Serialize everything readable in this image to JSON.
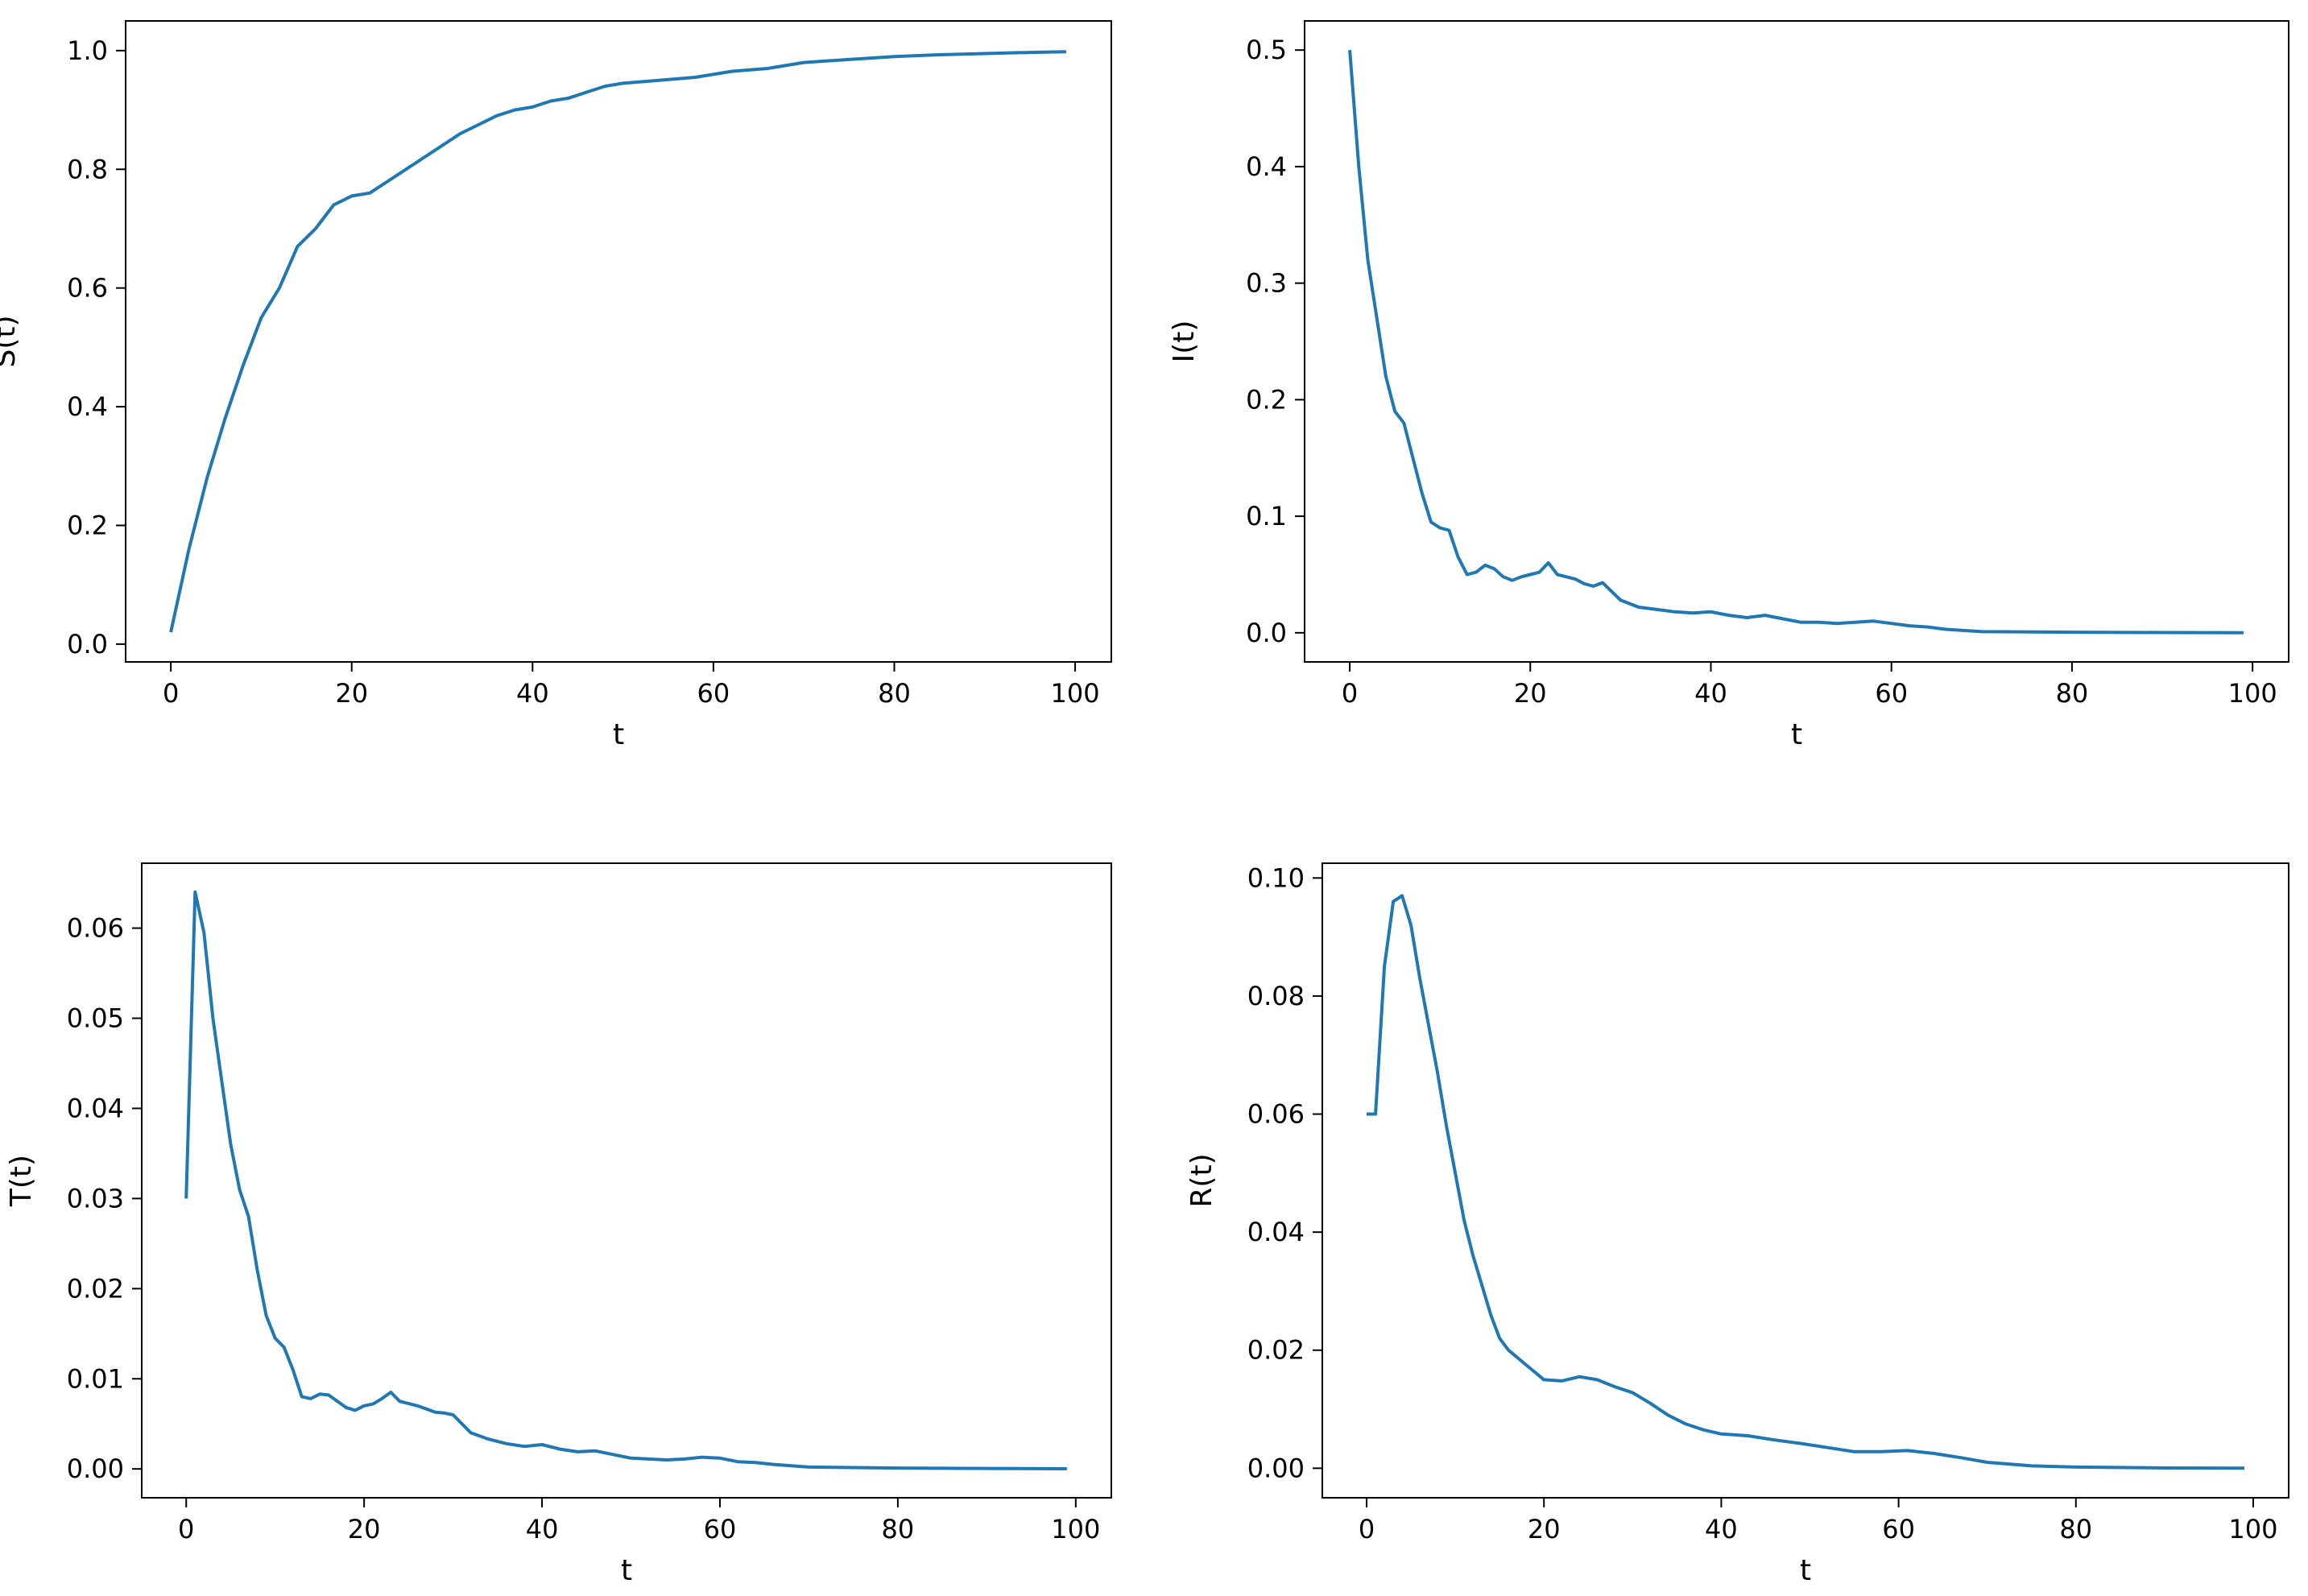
{
  "chart_data": [
    {
      "type": "line",
      "xlabel": "t",
      "ylabel": "S(t)",
      "xlim": [
        -5,
        104
      ],
      "ylim": [
        -0.03,
        1.05
      ],
      "xticks": [
        "0",
        "20",
        "40",
        "60",
        "80",
        "100"
      ],
      "yticks": [
        "0.0",
        "0.2",
        "0.4",
        "0.6",
        "0.8",
        "1.0"
      ],
      "x": [
        0,
        2,
        4,
        6,
        8,
        10,
        12,
        14,
        16,
        18,
        20,
        22,
        24,
        26,
        28,
        30,
        32,
        34,
        36,
        38,
        40,
        42,
        44,
        46,
        48,
        50,
        54,
        58,
        62,
        66,
        70,
        75,
        80,
        85,
        90,
        95,
        99
      ],
      "y": [
        0.02,
        0.16,
        0.28,
        0.38,
        0.47,
        0.55,
        0.6,
        0.67,
        0.7,
        0.74,
        0.755,
        0.76,
        0.78,
        0.8,
        0.82,
        0.84,
        0.86,
        0.875,
        0.89,
        0.9,
        0.905,
        0.915,
        0.92,
        0.93,
        0.94,
        0.945,
        0.95,
        0.955,
        0.965,
        0.97,
        0.98,
        0.985,
        0.99,
        0.993,
        0.995,
        0.997,
        0.998
      ],
      "color": "#1f77b4"
    },
    {
      "type": "line",
      "xlabel": "t",
      "ylabel": "I(t)",
      "xlim": [
        -5,
        104
      ],
      "ylim": [
        -0.025,
        0.525
      ],
      "xticks": [
        "0",
        "20",
        "40",
        "60",
        "80",
        "100"
      ],
      "yticks": [
        "0.0",
        "0.1",
        "0.2",
        "0.3",
        "0.4",
        "0.5"
      ],
      "x": [
        0,
        1,
        2,
        3,
        4,
        5,
        6,
        7,
        8,
        9,
        10,
        11,
        12,
        13,
        14,
        15,
        16,
        17,
        18,
        19,
        20,
        21,
        22,
        23,
        24,
        25,
        26,
        27,
        28,
        30,
        32,
        34,
        36,
        38,
        40,
        42,
        44,
        46,
        48,
        50,
        52,
        54,
        56,
        58,
        60,
        62,
        64,
        66,
        70,
        80,
        90,
        99
      ],
      "y": [
        0.5,
        0.4,
        0.32,
        0.27,
        0.22,
        0.19,
        0.18,
        0.15,
        0.12,
        0.095,
        0.09,
        0.088,
        0.065,
        0.05,
        0.052,
        0.058,
        0.055,
        0.048,
        0.045,
        0.048,
        0.05,
        0.052,
        0.06,
        0.05,
        0.048,
        0.046,
        0.042,
        0.04,
        0.043,
        0.028,
        0.022,
        0.02,
        0.018,
        0.017,
        0.018,
        0.015,
        0.013,
        0.015,
        0.012,
        0.009,
        0.009,
        0.008,
        0.009,
        0.01,
        0.008,
        0.006,
        0.005,
        0.003,
        0.001,
        0.0005,
        0.0002,
        0.0001
      ],
      "color": "#1f77b4"
    },
    {
      "type": "line",
      "xlabel": "t",
      "ylabel": "T(t)",
      "xlim": [
        -5,
        104
      ],
      "ylim": [
        -0.0032,
        0.0672
      ],
      "xticks": [
        "0",
        "20",
        "40",
        "60",
        "80",
        "100"
      ],
      "yticks": [
        "0.00",
        "0.01",
        "0.02",
        "0.03",
        "0.04",
        "0.05",
        "0.06"
      ],
      "x": [
        0,
        1,
        2,
        3,
        4,
        5,
        6,
        7,
        8,
        9,
        10,
        11,
        12,
        13,
        14,
        15,
        16,
        17,
        18,
        19,
        20,
        21,
        22,
        23,
        24,
        26,
        28,
        29,
        30,
        32,
        34,
        36,
        38,
        40,
        42,
        44,
        46,
        48,
        50,
        52,
        54,
        56,
        58,
        60,
        62,
        64,
        66,
        70,
        80,
        90,
        99
      ],
      "y": [
        0.03,
        0.064,
        0.0595,
        0.05,
        0.043,
        0.036,
        0.031,
        0.028,
        0.022,
        0.017,
        0.0145,
        0.0135,
        0.011,
        0.008,
        0.0078,
        0.0083,
        0.0082,
        0.0075,
        0.0068,
        0.0065,
        0.007,
        0.0072,
        0.0078,
        0.0085,
        0.0075,
        0.007,
        0.0063,
        0.0062,
        0.006,
        0.004,
        0.0033,
        0.0028,
        0.0025,
        0.0027,
        0.0022,
        0.0019,
        0.002,
        0.0016,
        0.0012,
        0.0011,
        0.001,
        0.0011,
        0.0013,
        0.0012,
        0.0008,
        0.0007,
        0.0005,
        0.0002,
        0.0001,
        5e-05,
        2e-05
      ],
      "color": "#1f77b4"
    },
    {
      "type": "line",
      "xlabel": "t",
      "ylabel": "R(t)",
      "xlim": [
        -5,
        104
      ],
      "ylim": [
        -0.005,
        0.1025
      ],
      "xticks": [
        "0",
        "20",
        "40",
        "60",
        "80",
        "100"
      ],
      "yticks": [
        "0.00",
        "0.02",
        "0.04",
        "0.06",
        "0.08",
        "0.10"
      ],
      "x": [
        0,
        1,
        2,
        3,
        4,
        5,
        6,
        7,
        8,
        9,
        10,
        11,
        12,
        13,
        14,
        15,
        16,
        18,
        20,
        22,
        24,
        26,
        28,
        30,
        32,
        34,
        36,
        38,
        40,
        43,
        46,
        49,
        52,
        55,
        58,
        61,
        64,
        67,
        70,
        75,
        80,
        90,
        99
      ],
      "y": [
        0.06,
        0.06,
        0.085,
        0.096,
        0.097,
        0.092,
        0.083,
        0.075,
        0.067,
        0.058,
        0.05,
        0.042,
        0.036,
        0.031,
        0.026,
        0.022,
        0.02,
        0.0175,
        0.015,
        0.0148,
        0.0155,
        0.015,
        0.0138,
        0.0128,
        0.011,
        0.009,
        0.0075,
        0.0065,
        0.0058,
        0.0055,
        0.0048,
        0.0042,
        0.0035,
        0.0028,
        0.0028,
        0.003,
        0.0025,
        0.0018,
        0.001,
        0.0004,
        0.0002,
        5e-05,
        2e-05
      ],
      "color": "#1f77b4"
    }
  ]
}
